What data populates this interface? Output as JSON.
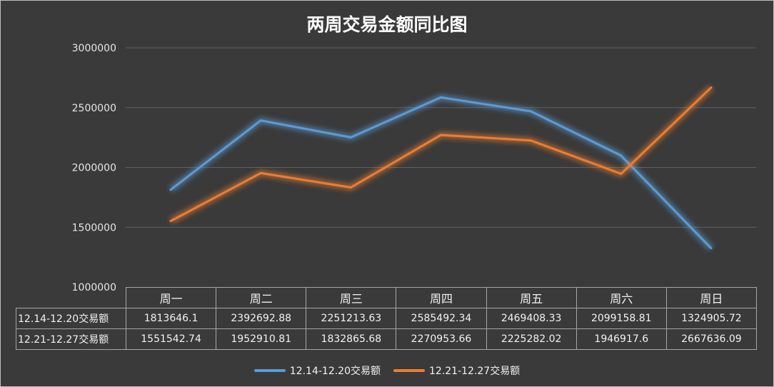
{
  "chart_data": {
    "type": "line",
    "title": "两周交易金额同比图",
    "categories": [
      "周一",
      "周二",
      "周三",
      "周四",
      "周五",
      "周六",
      "周日"
    ],
    "ylim": [
      1000000,
      3000000
    ],
    "yticks": [
      "3000000",
      "2500000",
      "2000000",
      "1500000",
      "1000000"
    ],
    "grid": true,
    "legend_position": "bottom",
    "series": [
      {
        "name": "12.14-12.20交易额",
        "color": "#5b9bd5",
        "values": [
          1813646.1,
          2392692.88,
          2251213.63,
          2585492.34,
          2469408.33,
          2099158.81,
          1324905.72
        ],
        "labels": [
          "1813646.1",
          "2392692.88",
          "2251213.63",
          "2585492.34",
          "2469408.33",
          "2099158.81",
          "1324905.72"
        ]
      },
      {
        "name": "12.21-12.27交易额",
        "color": "#ed7d31",
        "values": [
          1551542.74,
          1952910.81,
          1832865.68,
          2270953.66,
          2225282.02,
          1946917.6,
          2667636.09
        ],
        "labels": [
          "1551542.74",
          "1952910.81",
          "1832865.68",
          "2270953.66",
          "2225282.02",
          "1946917.6",
          "2667636.09"
        ]
      }
    ]
  }
}
